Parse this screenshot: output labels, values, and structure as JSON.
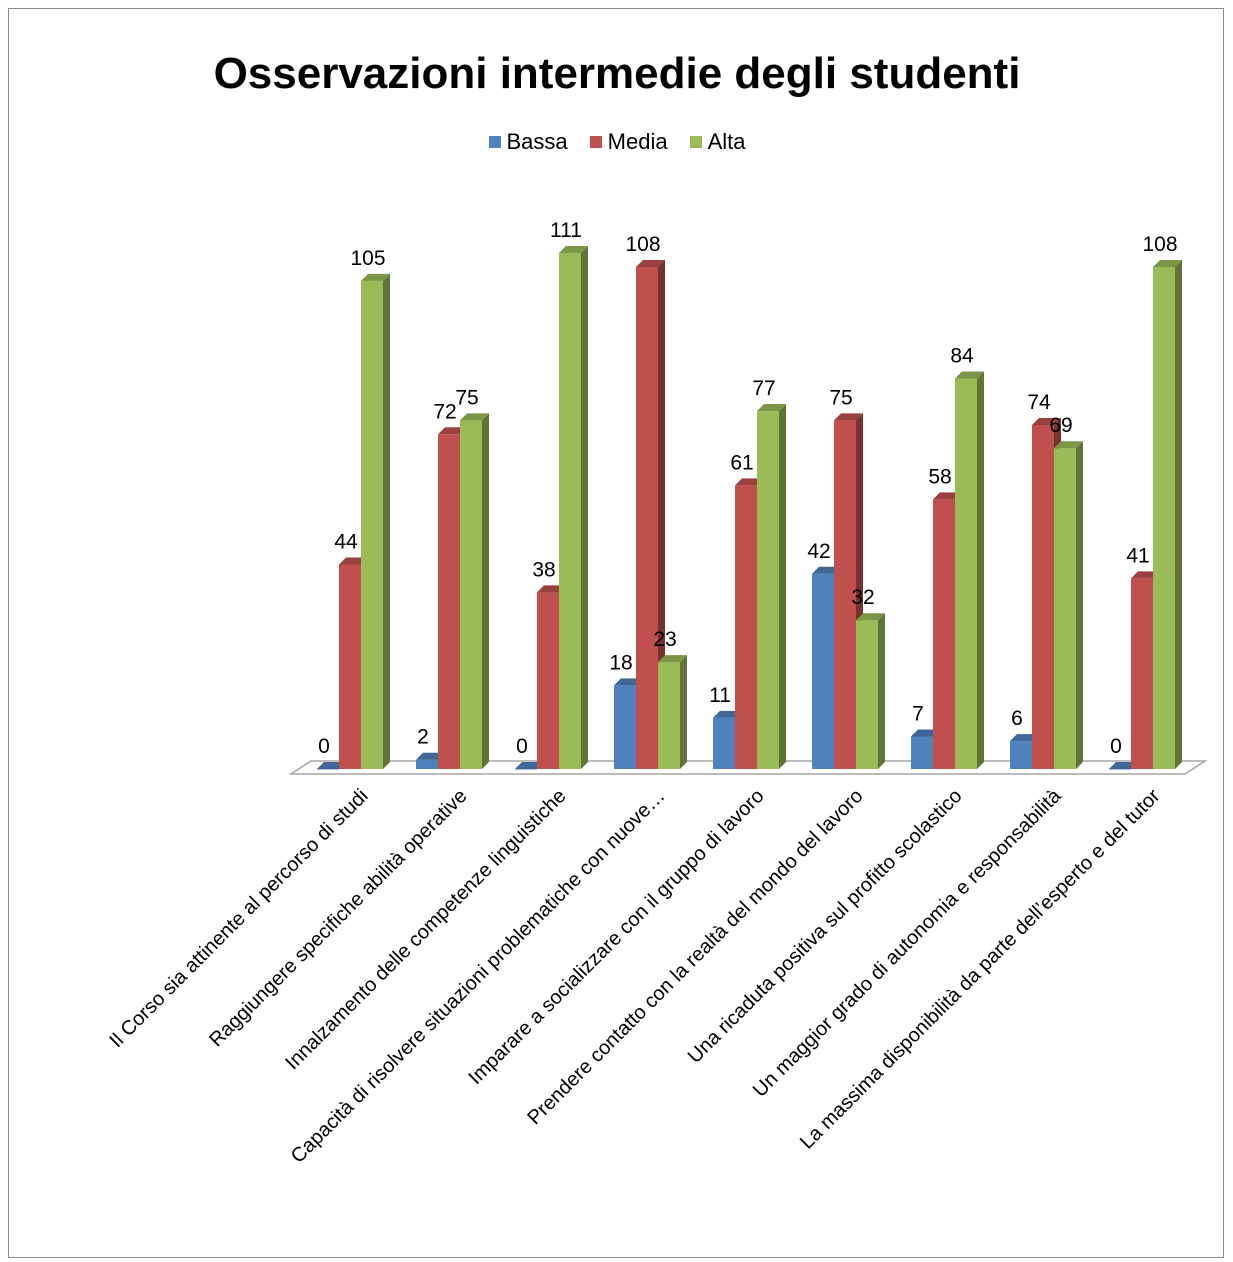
{
  "chart_data": {
    "type": "bar",
    "title": "Osservazioni intermedie degli studenti",
    "categories": [
      "Il Corso sia attinente al percorso di studi",
      "Raggiungere specifiche abilità operative",
      "Innalzamento delle competenze linguistiche",
      "Capacità di risolvere situazioni problematiche con nuove…",
      "Imparare a socializzare con il gruppo di lavoro",
      "Prendere contatto con la realtà del mondo del lavoro",
      "Una ricaduta positiva sul profitto scolastico",
      "Un maggior grado di autonomia e responsabilità",
      "La massima disponibilità da parte dell’esperto e del tutor"
    ],
    "series": [
      {
        "name": "Bassa",
        "color": "#4f81bd",
        "values": [
          0,
          2,
          0,
          18,
          11,
          42,
          7,
          6,
          0
        ]
      },
      {
        "name": "Media",
        "color": "#c0504d",
        "values": [
          44,
          72,
          38,
          108,
          61,
          75,
          58,
          74,
          41
        ]
      },
      {
        "name": "Alta",
        "color": "#9bbb59",
        "values": [
          105,
          75,
          111,
          23,
          77,
          32,
          84,
          69,
          108
        ]
      }
    ],
    "ylim": [
      0,
      111
    ],
    "legend_position": "top",
    "grid": false,
    "data_labels": true
  }
}
